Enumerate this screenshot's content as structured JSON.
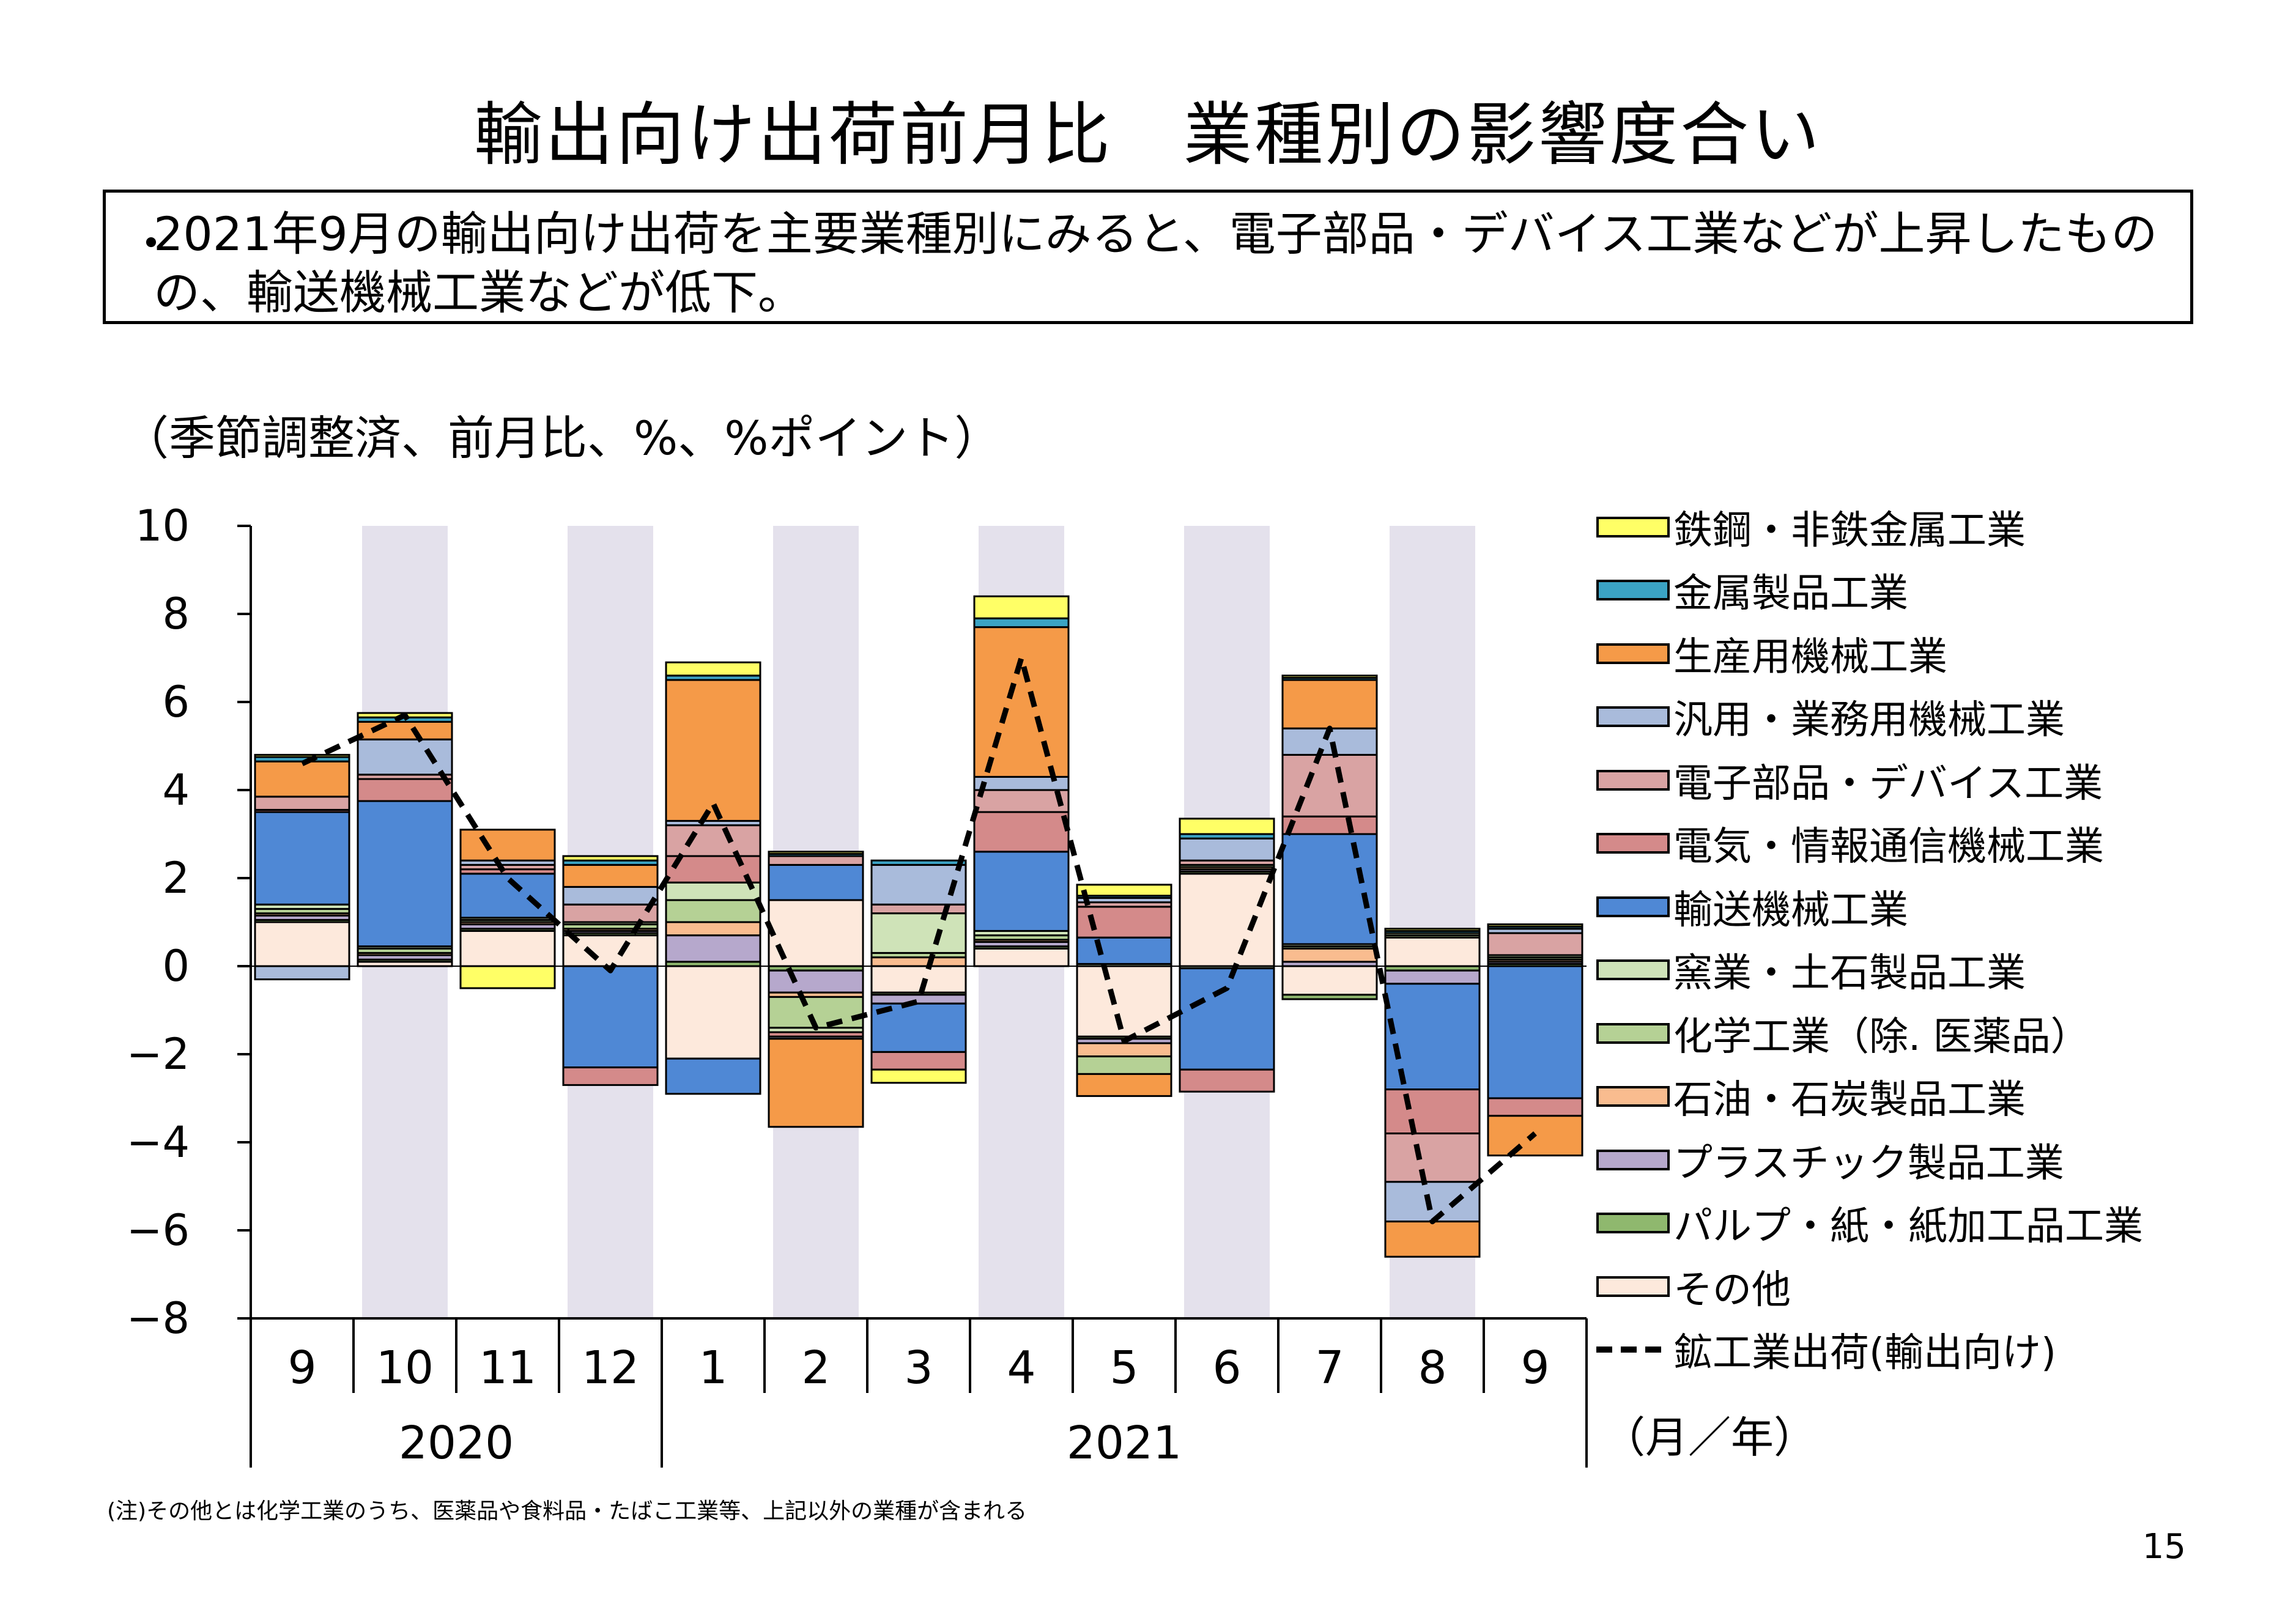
{
  "title": "輸出向け出荷前月比　業種別の影響度合い",
  "summary": {
    "bullet": "・",
    "text": "2021年9月の輸出向け出荷を主要業種別にみると、電子部品・デバイス工業などが上昇したものの、輸送機械工業などが低下。"
  },
  "unit_label": "（季節調整済、前月比、%、%ポイント）",
  "footnote": "(注)その他とは化学工業のうち、医薬品や食料品・たばこ工業等、上記以外の業種が含まれる",
  "page_number": "15",
  "month_year_label": "（月／年）",
  "chart_data": {
    "type": "bar",
    "stacked": true,
    "categories": [
      "9",
      "10",
      "11",
      "12",
      "1",
      "2",
      "3",
      "4",
      "5",
      "6",
      "7",
      "8",
      "9"
    ],
    "years": [
      {
        "label": "2020",
        "start_index": 0,
        "end_index": 3
      },
      {
        "label": "2021",
        "start_index": 4,
        "end_index": 12
      }
    ],
    "ylim": [
      -8,
      10
    ],
    "yticks": [
      -8,
      -6,
      -4,
      -2,
      0,
      2,
      4,
      6,
      8,
      10
    ],
    "shaded_columns": [
      1,
      3,
      5,
      7,
      9,
      11
    ],
    "shade_color": "#e4e1ec",
    "stack_order": [
      "その他",
      "パルプ・紙・紙加工品工業",
      "プラスチック製品工業",
      "石油・石炭製品工業",
      "化学工業（除. 医薬品）",
      "窯業・土石製品工業",
      "輸送機械工業",
      "電気・情報通信機械工業",
      "電子部品・デバイス工業",
      "汎用・業務用機械工業",
      "生産用機械工業",
      "金属製品工業",
      "鉄鋼・非鉄金属工業"
    ],
    "series": [
      {
        "name": "鉄鋼・非鉄金属工業",
        "color": "#ffff66",
        "values": [
          0.05,
          0.1,
          -0.5,
          0.1,
          0.3,
          0.05,
          -0.3,
          0.5,
          0.25,
          0.35,
          0.05,
          0.05,
          0.05
        ]
      },
      {
        "name": "金属製品工業",
        "color": "#3ba3c4",
        "values": [
          0.1,
          0.1,
          0.0,
          0.1,
          0.1,
          0.05,
          0.1,
          0.2,
          0.05,
          0.1,
          0.05,
          0.05,
          0.05
        ]
      },
      {
        "name": "生産用機械工業",
        "color": "#f59a48",
        "values": [
          0.8,
          0.4,
          0.7,
          0.5,
          3.2,
          -2.0,
          0.0,
          3.4,
          -0.5,
          0.0,
          1.1,
          -0.8,
          -0.9
        ]
      },
      {
        "name": "汎用・業務用機械工業",
        "color": "#a9bbdb",
        "values": [
          -0.3,
          0.8,
          0.1,
          0.4,
          0.1,
          -0.05,
          0.9,
          0.3,
          0.1,
          0.5,
          0.6,
          -0.9,
          0.1
        ]
      },
      {
        "name": "電子部品・デバイス工業",
        "color": "#d9a3a3",
        "values": [
          0.3,
          0.1,
          0.1,
          0.4,
          0.7,
          0.2,
          0.2,
          0.5,
          0.1,
          0.1,
          1.4,
          -1.1,
          0.5
        ]
      },
      {
        "name": "電気・情報通信機械工業",
        "color": "#d48a8a",
        "values": [
          0.05,
          0.5,
          0.1,
          -0.4,
          0.6,
          -0.1,
          -0.4,
          0.9,
          0.7,
          -0.5,
          0.4,
          -1.0,
          -0.4
        ]
      },
      {
        "name": "輸送機械工業",
        "color": "#4f88d5",
        "values": [
          2.1,
          3.3,
          1.0,
          -2.3,
          -0.8,
          0.8,
          -1.1,
          1.8,
          0.6,
          -2.3,
          2.5,
          -2.4,
          -3.0
        ]
      },
      {
        "name": "窯業・土石製品工業",
        "color": "#cfe3b8",
        "values": [
          0.1,
          0.05,
          0.05,
          0.05,
          0.4,
          -0.1,
          0.9,
          0.1,
          0.05,
          -0.05,
          0.05,
          0.05,
          0.05
        ]
      },
      {
        "name": "化学工業（除. 医薬品）",
        "color": "#b5d195",
        "values": [
          0.1,
          0.1,
          0.05,
          0.1,
          0.5,
          -0.7,
          0.1,
          0.1,
          -0.4,
          0.05,
          0.05,
          0.05,
          0.05
        ]
      },
      {
        "name": "石油・石炭製品工業",
        "color": "#f9bc8f",
        "values": [
          0.05,
          0.05,
          0.05,
          0.05,
          0.3,
          -0.1,
          0.2,
          0.05,
          -0.3,
          0.05,
          0.3,
          0.0,
          0.05
        ]
      },
      {
        "name": "プラスチック製品工業",
        "color": "#b6a8cc",
        "values": [
          0.1,
          0.1,
          0.1,
          0.05,
          0.6,
          -0.5,
          -0.2,
          0.1,
          -0.1,
          0.05,
          0.1,
          -0.3,
          0.05
        ]
      },
      {
        "name": "パルプ・紙・紙加工品工業",
        "color": "#8fb86e",
        "values": [
          0.05,
          0.05,
          0.05,
          0.05,
          0.1,
          -0.1,
          -0.05,
          0.05,
          -0.05,
          0.05,
          -0.1,
          -0.1,
          0.05
        ]
      },
      {
        "name": "その他",
        "color": "#fde9dc",
        "values": [
          1.0,
          0.1,
          0.8,
          0.7,
          -2.1,
          1.5,
          -0.6,
          0.4,
          -1.6,
          2.1,
          -0.65,
          0.65,
          0.0
        ]
      }
    ],
    "line": {
      "name": "鉱工業出荷(輸出向け)",
      "color": "#000000",
      "style": "dashed",
      "values": [
        4.6,
        5.7,
        2.0,
        -0.1,
        3.7,
        -1.4,
        -0.8,
        7.0,
        -1.7,
        -0.5,
        5.4,
        -5.8,
        -3.8
      ]
    },
    "legend_position": "right"
  }
}
